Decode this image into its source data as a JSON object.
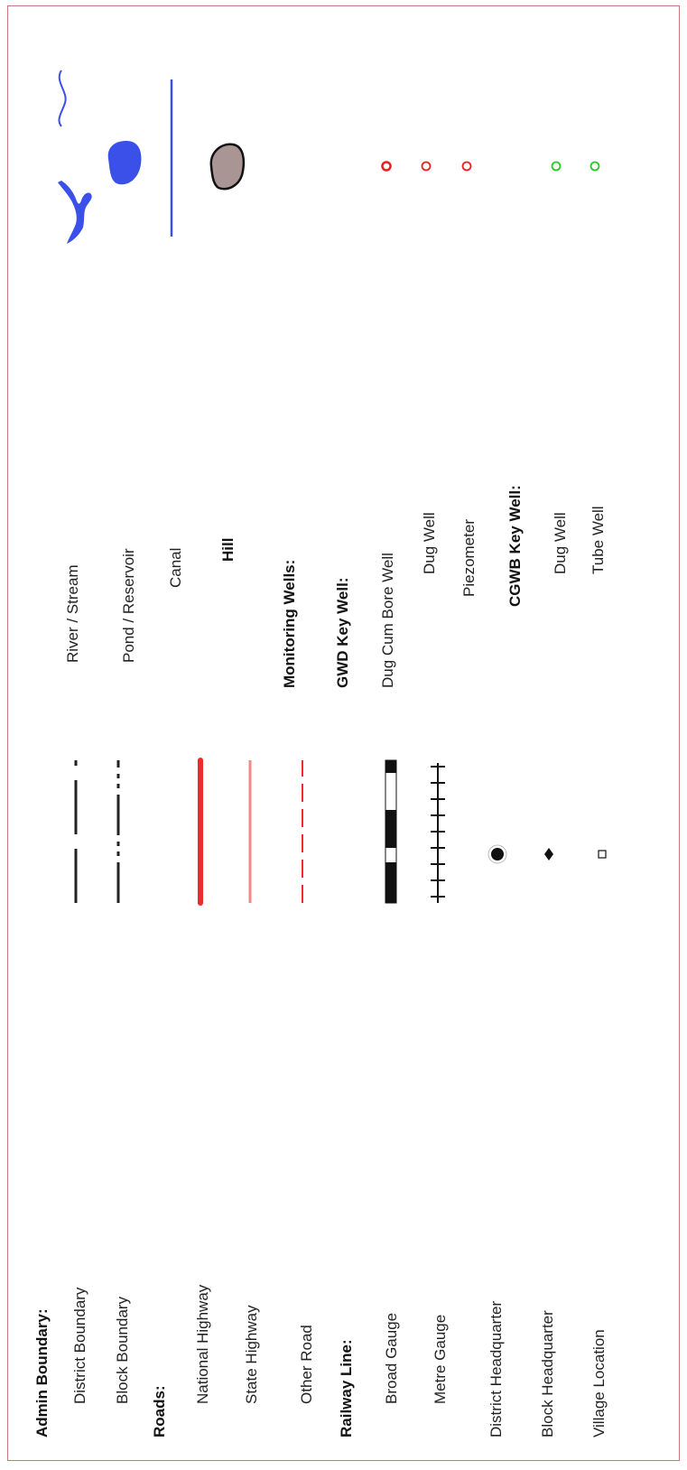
{
  "left_column": {
    "admin_header": "Admin Boundary:",
    "district_boundary": "District Boundary",
    "block_boundary": "Block Boundary",
    "roads_header": "Roads:",
    "national_highway": "National Highway",
    "state_highway": "State Highway",
    "other_road": "Other Road",
    "railway_header": "Railway Line:",
    "broad_gauge": "Broad Gauge",
    "metre_gauge": "Metre Gauge",
    "district_hq": "District Headquarter",
    "block_hq": "Block Headquarter",
    "village_location": "Village Location"
  },
  "right_column": {
    "river_stream": "River / Stream",
    "pond_reservoir": "Pond / Reservoir",
    "canal": "Canal",
    "hill": "Hill",
    "monitoring_header": "Monitoring Wells:",
    "gwd_header": "GWD Key Well:",
    "dug_cum_bore": "Dug  Cum Bore Well",
    "gwd_dug_well": "Dug Well",
    "piezometer": "Piezometer",
    "cgwb_header": "CGWB Key Well:",
    "cgwb_dug_well": "Dug  Well",
    "tube_well": "Tube Well"
  },
  "colors": {
    "frame": "#c87a7a",
    "water": "#3a50e8",
    "national_highway": "#ee2a2a",
    "state_highway": "#f08a8a",
    "other_road": "#ee2a2a",
    "hill_fill": "#a99594",
    "gwd_well": "#e82020",
    "cgwb_well": "#22cc22"
  }
}
